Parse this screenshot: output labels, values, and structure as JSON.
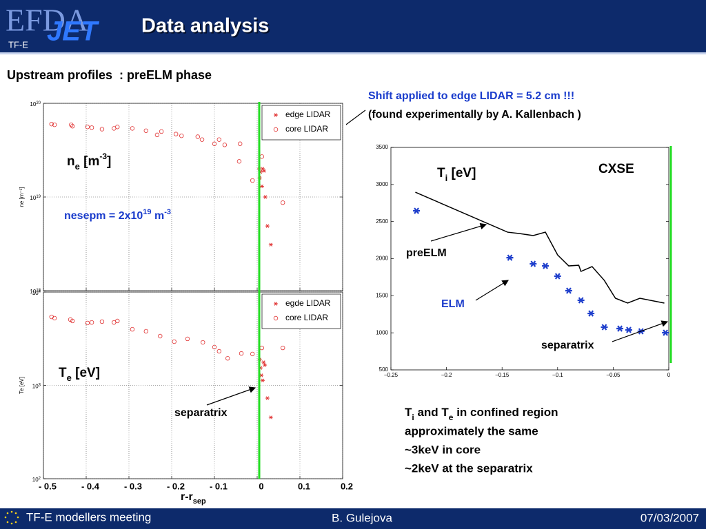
{
  "header": {
    "title": "Data analysis",
    "logo": [
      "EFDA",
      "JET"
    ],
    "tag": "TF-E"
  },
  "subtitle": "Upstream profiles  : preELM phase",
  "note": [
    "Shift applied to edge LIDAR = 5.2 cm !!!",
    "(found experimentally by A. Kallenbach )"
  ],
  "summary": {
    "line1": [
      "T",
      "i",
      " and T",
      "e",
      " in confined region"
    ],
    "line2": "approximately the same",
    "line3": "~3keV in core",
    "line4": "~2keV at the separatrix"
  },
  "footer": {
    "left": "TF-E modellers meeting",
    "center": "B. Gulejova",
    "right": "07/03/2007"
  },
  "chart_data": [
    {
      "type": "scatter",
      "log_y": true,
      "ylabel": "ne [m⁻³]",
      "xlim": [
        -0.5,
        0.2
      ],
      "ylim": [
        1e+18,
        1e+20
      ],
      "yticks": [
        {
          "value": 1e+18,
          "label": "10",
          "sup": "18"
        },
        {
          "value": 1e+19,
          "label": "10",
          "sup": "19"
        },
        {
          "value": 1e+20,
          "label": "10",
          "sup": "20"
        }
      ],
      "grid": true,
      "vline": 0,
      "vline_color": "#22dd22",
      "legend": "upper right",
      "series": [
        {
          "name": "edge LIDAR",
          "marker": "star",
          "color": "#e03030",
          "x": [
            0.005,
            0.013,
            0.008,
            0.016,
            0.006,
            0.011,
            0.019,
            0.024,
            0.032
          ],
          "values": [
            2e+19,
            2e+19,
            1.85e+19,
            1.9e+19,
            1.6e+19,
            1.3e+19,
            1e+19,
            4.9e+18,
            3.1e+18
          ]
        },
        {
          "name": "core LIDAR",
          "marker": "circle",
          "color": "#e03030",
          "x": [
            -0.481,
            -0.474,
            -0.435,
            -0.432,
            -0.397,
            -0.387,
            -0.363,
            -0.335,
            -0.327,
            -0.292,
            -0.26,
            -0.234,
            -0.224,
            -0.19,
            -0.177,
            -0.139,
            -0.129,
            -0.1,
            -0.089,
            -0.076,
            -0.04,
            -0.042,
            -0.011,
            0.011,
            0.06
          ],
          "values": [
            6e+19,
            5.9e+19,
            5.9e+19,
            5.7e+19,
            5.6e+19,
            5.5e+19,
            5.3e+19,
            5.4e+19,
            5.6e+19,
            5.4e+19,
            5.1e+19,
            4.6e+19,
            5e+19,
            4.7e+19,
            4.5e+19,
            4.4e+19,
            4.1e+19,
            3.7e+19,
            4.1e+19,
            3.6e+19,
            3.7e+19,
            2.4e+19,
            1.5e+19,
            2.7e+19,
            8.7e+18
          ]
        }
      ],
      "labels": {
        "quantity": [
          "n",
          "e",
          " [m",
          "-3",
          "]"
        ],
        "nesep": [
          "nesepm = 2x10",
          "19",
          " m",
          "-3"
        ]
      }
    },
    {
      "type": "scatter",
      "log_y": true,
      "ylabel": "Te [eV]",
      "xlim": [
        -0.5,
        0.2
      ],
      "ylim": [
        100,
        10000
      ],
      "xticks": [
        {
          "value": -0.5,
          "label": "- 0.5"
        },
        {
          "value": -0.4,
          "label": "- 0.4"
        },
        {
          "value": -0.3,
          "label": "- 0.3"
        },
        {
          "value": -0.2,
          "label": "- 0.2"
        },
        {
          "value": -0.1,
          "label": "- 0.1"
        },
        0,
        0.1,
        0.2
      ],
      "yticks": [
        {
          "value": 100,
          "label": "10",
          "sup": "2"
        },
        {
          "value": 1000,
          "label": "10",
          "sup": "3"
        },
        {
          "value": 10000,
          "label": "10",
          "sup": "4"
        }
      ],
      "grid": true,
      "vline": 0,
      "vline_color": "#22dd22",
      "legend": "upper right",
      "xlabel": [
        "r-r",
        "sep"
      ],
      "series": [
        {
          "name": "egde LIDAR",
          "marker": "star",
          "color": "#e03030",
          "x": [
            0.006,
            0.015,
            0.008,
            0.018,
            0.01,
            0.013,
            0.024,
            0.032
          ],
          "values": [
            1890,
            1770,
            1540,
            1650,
            1280,
            1130,
            730,
            454
          ]
        },
        {
          "name": "core LIDAR",
          "marker": "circle",
          "color": "#e03030",
          "x": [
            -0.481,
            -0.474,
            -0.437,
            -0.432,
            -0.397,
            -0.387,
            -0.363,
            -0.335,
            -0.327,
            -0.292,
            -0.26,
            -0.227,
            -0.194,
            -0.163,
            -0.127,
            -0.1,
            -0.089,
            -0.069,
            -0.037,
            -0.011,
            0.011,
            0.06
          ],
          "values": [
            5420,
            5250,
            5070,
            4900,
            4660,
            4730,
            4820,
            4730,
            4900,
            3990,
            3800,
            3370,
            2940,
            3150,
            2890,
            2570,
            2320,
            1950,
            2200,
            2170,
            2520,
            2520
          ]
        }
      ],
      "labels": {
        "quantity": [
          "T",
          "e",
          " [eV]"
        ],
        "separatrix": "separatrix"
      }
    },
    {
      "type": "line",
      "log_y": false,
      "xlim": [
        -0.25,
        0
      ],
      "ylim": [
        500,
        3500
      ],
      "xticks": [
        {
          "value": -0.25,
          "label": "−0.25"
        },
        {
          "value": -0.2,
          "label": "−0.2"
        },
        {
          "value": -0.15,
          "label": "−0.15"
        },
        {
          "value": -0.1,
          "label": "−0.1"
        },
        {
          "value": -0.05,
          "label": "−0.05"
        },
        0
      ],
      "yticks": [
        500,
        1000,
        1500,
        2000,
        2500,
        3000,
        3500
      ],
      "grid": false,
      "vline": 0,
      "vline_color": "#22dd22",
      "series": [
        {
          "name": "preELM",
          "marker": "line",
          "color": "#000000",
          "x": [
            -0.228,
            -0.145,
            -0.134,
            -0.122,
            -0.111,
            -0.1,
            -0.09,
            -0.081,
            -0.079,
            -0.069,
            -0.058,
            -0.048,
            -0.037,
            -0.026,
            -0.004
          ],
          "values": [
            2896,
            2357,
            2338,
            2311,
            2357,
            2050,
            1902,
            1911,
            1828,
            1893,
            1707,
            1466,
            1401,
            1466,
            1401
          ]
        },
        {
          "name": "ELM",
          "marker": "star",
          "color": "#1f3fcc",
          "x": [
            -0.227,
            -0.143,
            -0.122,
            -0.111,
            -0.1,
            -0.09,
            -0.079,
            -0.07,
            -0.058,
            -0.044,
            -0.036,
            -0.025,
            -0.003
          ],
          "values": [
            2645,
            2013,
            1930,
            1902,
            1763,
            1568,
            1438,
            1261,
            1076,
            1057,
            1039,
            1020,
            1001
          ]
        }
      ],
      "labels": {
        "quantity": [
          "T",
          "i",
          " [eV]"
        ],
        "method": "CXSE",
        "separatrix": "separatrix"
      }
    }
  ]
}
